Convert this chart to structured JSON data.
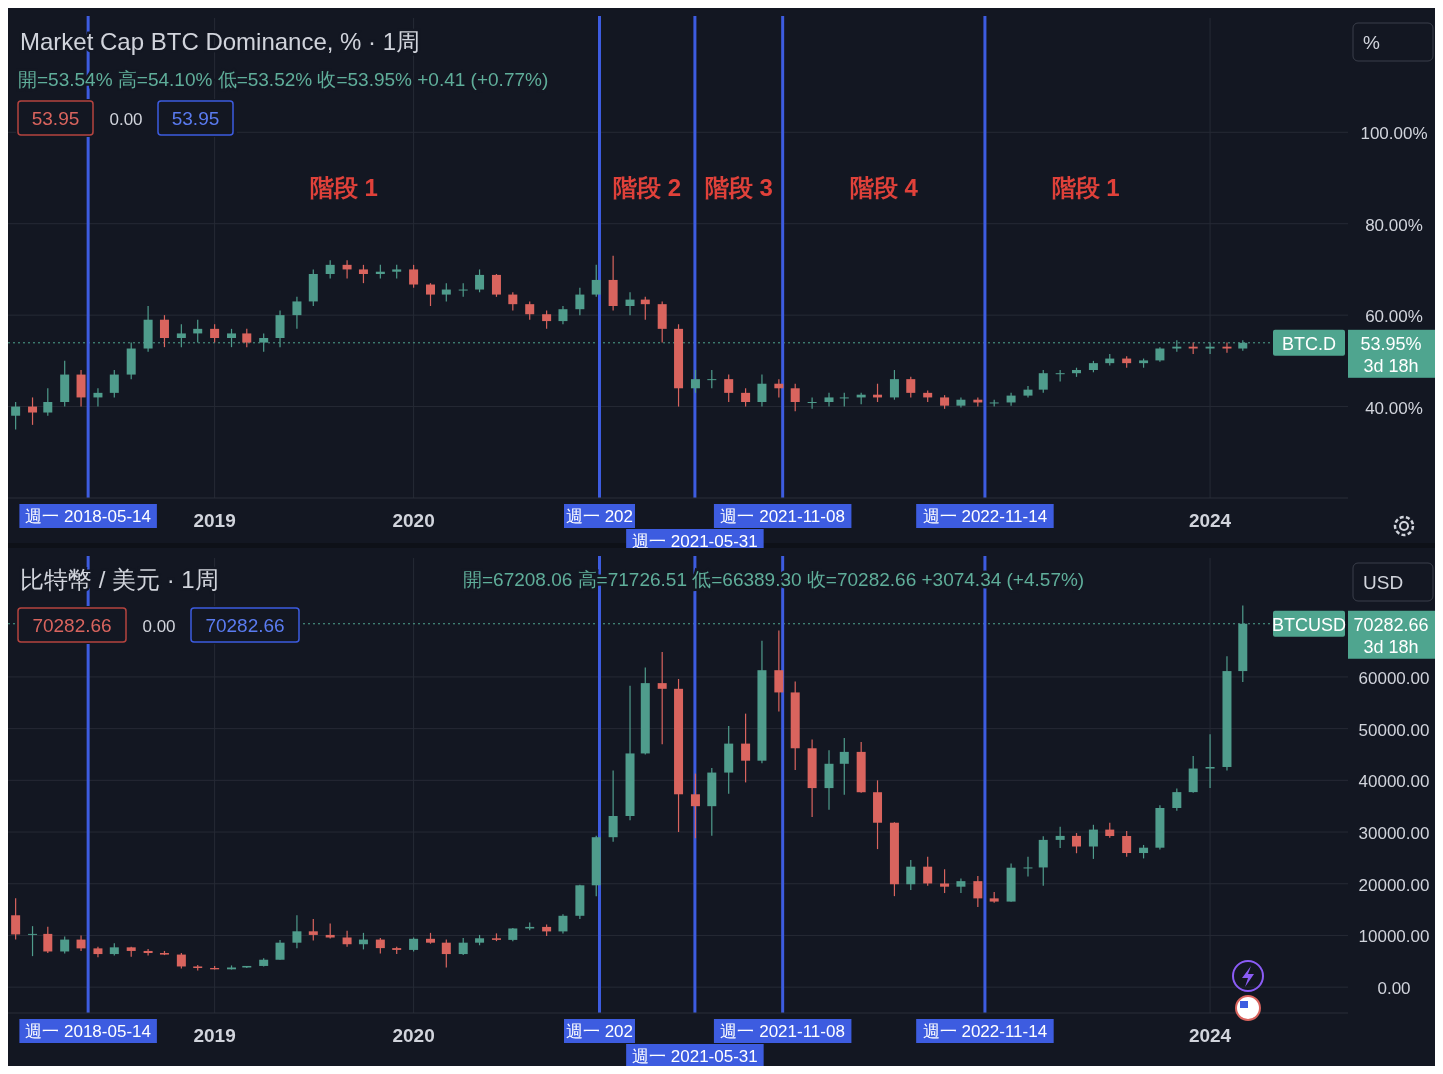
{
  "chart_data": [
    {
      "type": "candlestick",
      "title": "Market Cap BTC Dominance, % · 1周",
      "subtitle": "開=53.54% 高=54.10% 低=53.52% 收=53.95% +0.41 (+0.77%)",
      "annotations": [
        "53.95",
        "0.00",
        "53.95",
        "%",
        "53.95%",
        "3d 18h",
        "階段 1",
        "階段 2",
        "階段 3",
        "階段 4",
        "階段 1"
      ],
      "x": [
        "2018-01",
        "2018-02",
        "2018-03",
        "2018-04",
        "2018-05",
        "2018-06",
        "2018-07",
        "2018-08",
        "2018-09",
        "2018-10",
        "2018-11",
        "2018-12",
        "2019-01",
        "2019-02",
        "2019-03",
        "2019-04",
        "2019-05",
        "2019-06",
        "2019-07",
        "2019-08",
        "2019-09",
        "2019-10",
        "2019-11",
        "2019-12",
        "2020-01",
        "2020-02",
        "2020-03",
        "2020-04",
        "2020-05",
        "2020-06",
        "2020-07",
        "2020-08",
        "2020-09",
        "2020-10",
        "2020-11",
        "2020-12",
        "2021-01",
        "2021-02",
        "2021-03",
        "2021-04",
        "2021-05",
        "2021-06",
        "2021-07",
        "2021-08",
        "2021-09",
        "2021-10",
        "2021-11",
        "2021-12",
        "2022-01",
        "2022-02",
        "2022-03",
        "2022-04",
        "2022-05",
        "2022-06",
        "2022-07",
        "2022-08",
        "2022-09",
        "2022-10",
        "2022-11",
        "2022-12",
        "2023-01",
        "2023-02",
        "2023-03",
        "2023-04",
        "2023-05",
        "2023-06",
        "2023-07",
        "2023-08",
        "2023-09",
        "2023-10",
        "2023-11",
        "2023-12",
        "2024-01",
        "2024-02",
        "2024-03"
      ],
      "ohlc": [
        [
          38,
          41,
          35,
          40
        ],
        [
          40,
          42,
          36,
          38.7
        ],
        [
          38.7,
          44,
          38,
          41
        ],
        [
          41,
          50,
          40,
          47
        ],
        [
          47,
          48,
          40,
          42
        ],
        [
          42,
          44,
          40,
          43
        ],
        [
          43,
          48,
          42,
          47
        ],
        [
          47,
          54,
          46,
          52.7
        ],
        [
          52.7,
          62,
          52,
          59
        ],
        [
          59,
          60,
          53,
          55
        ],
        [
          55,
          58,
          53,
          56
        ],
        [
          56,
          59,
          54,
          57
        ],
        [
          57,
          58,
          54,
          55
        ],
        [
          55,
          57,
          53,
          56
        ],
        [
          56,
          57,
          53,
          54
        ],
        [
          54,
          56,
          52,
          55
        ],
        [
          55,
          61,
          53,
          60
        ],
        [
          60,
          64,
          57,
          63
        ],
        [
          63,
          70,
          62,
          69
        ],
        [
          69,
          72,
          68,
          71
        ],
        [
          71,
          72,
          68,
          70
        ],
        [
          70,
          71,
          67,
          69
        ],
        [
          69,
          71,
          68,
          69.5
        ],
        [
          69.5,
          71,
          68,
          70
        ],
        [
          70,
          71,
          66,
          66.7
        ],
        [
          66.7,
          67,
          62,
          64.5
        ],
        [
          64.5,
          67,
          63,
          65.6
        ],
        [
          65.6,
          67,
          64,
          65.6
        ],
        [
          65.6,
          70,
          65,
          68.8
        ],
        [
          68.8,
          69,
          64,
          64.5
        ],
        [
          64.5,
          65,
          61,
          62.4
        ],
        [
          62.4,
          63,
          59,
          60.2
        ],
        [
          60.2,
          61,
          57,
          58.7
        ],
        [
          58.7,
          62,
          58,
          61.3
        ],
        [
          61.3,
          66,
          60,
          64.5
        ],
        [
          64.5,
          71,
          64,
          67.7
        ],
        [
          67.7,
          73,
          61,
          62
        ],
        [
          62,
          65,
          60,
          63.4
        ],
        [
          63.4,
          64,
          59,
          62.4
        ],
        [
          62.4,
          63,
          54,
          57
        ],
        [
          57,
          58,
          40,
          44
        ],
        [
          44,
          48,
          43,
          46
        ],
        [
          46,
          48,
          44,
          46
        ],
        [
          46,
          47,
          41,
          43
        ],
        [
          43,
          44,
          40,
          41
        ],
        [
          41,
          47,
          40,
          45
        ],
        [
          45,
          46,
          42,
          44
        ],
        [
          44,
          45,
          39,
          41
        ],
        [
          41,
          42,
          39.5,
          41
        ],
        [
          41,
          43,
          40,
          42
        ],
        [
          42,
          43,
          40,
          42
        ],
        [
          42,
          43,
          40.5,
          42.6
        ],
        [
          42.6,
          45,
          41,
          42
        ],
        [
          42,
          48,
          41.5,
          46
        ],
        [
          46,
          46.5,
          42,
          43
        ],
        [
          43,
          43.5,
          41,
          42
        ],
        [
          42,
          42.5,
          39.5,
          40.2
        ],
        [
          40.2,
          42,
          39.8,
          41.5
        ],
        [
          41.5,
          42,
          40,
          40.9
        ],
        [
          40.9,
          41.5,
          40,
          40.9
        ],
        [
          40.9,
          43,
          40.2,
          42.4
        ],
        [
          42.4,
          44.5,
          42,
          43.7
        ],
        [
          43.7,
          48,
          43,
          47.3
        ],
        [
          47.3,
          48,
          45.5,
          47.3
        ],
        [
          47.3,
          48.5,
          46.5,
          48
        ],
        [
          48,
          50,
          47.5,
          49.5
        ],
        [
          49.5,
          51.5,
          49,
          50.5
        ],
        [
          50.5,
          51,
          48.5,
          49.5
        ],
        [
          49.5,
          50.5,
          48.5,
          50.1
        ],
        [
          50.1,
          53,
          49.8,
          52.7
        ],
        [
          52.7,
          54.5,
          52,
          53.1
        ],
        [
          53.1,
          54,
          51.5,
          52.7
        ],
        [
          52.7,
          54,
          51.5,
          53.1
        ],
        [
          53.1,
          54,
          51.8,
          52.7
        ],
        [
          52.7,
          54.5,
          52.2,
          53.95
        ]
      ],
      "xlim": [
        "2017-12-18",
        "2024-09-10"
      ],
      "xticks": [
        {
          "value": "2019",
          "label": "2019"
        },
        {
          "value": "2020",
          "label": "2020"
        },
        {
          "value": "2024",
          "label": "2024"
        }
      ],
      "ylim": [
        20,
        125
      ],
      "yticks": [
        {
          "value": 40,
          "label": "40.00%"
        },
        {
          "value": 60,
          "label": "60.00%"
        },
        {
          "value": 80,
          "label": "80.00%"
        },
        {
          "value": 100,
          "label": "100.00%"
        }
      ],
      "grid": true,
      "ref_lines": [
        {
          "axis": "x",
          "value": "2018-05-14",
          "label": "週一 2018-05-14",
          "color": "#3d5ce0"
        },
        {
          "axis": "x",
          "value": "2020-12-07",
          "label": "週一 202",
          "color": "#3d5ce0"
        },
        {
          "axis": "x",
          "value": "2021-05-31",
          "label": "週一 2021-05-31",
          "color": "#3d5ce0"
        },
        {
          "axis": "x",
          "value": "2021-11-08",
          "label": "週一 2021-11-08",
          "color": "#3d5ce0"
        },
        {
          "axis": "x",
          "value": "2022-11-14",
          "label": "週一 2022-11-14",
          "color": "#3d5ce0"
        },
        {
          "axis": "y",
          "value": 53.95,
          "label": "BTC.D",
          "color": "#4fa58f",
          "line_style": "dotted"
        }
      ]
    },
    {
      "type": "candlestick",
      "title": "比特幣 / 美元 · 1周",
      "subtitle": "開=67208.06 高=71726.51 低=66389.30 收=70282.66 +3074.34 (+4.57%)",
      "annotations": [
        "70282.66",
        "0.00",
        "70282.66",
        "USD",
        "70282.66",
        "3d 18h"
      ],
      "x": [
        "2018-01",
        "2018-02",
        "2018-03",
        "2018-04",
        "2018-05",
        "2018-06",
        "2018-07",
        "2018-08",
        "2018-09",
        "2018-10",
        "2018-11",
        "2018-12",
        "2019-01",
        "2019-02",
        "2019-03",
        "2019-04",
        "2019-05",
        "2019-06",
        "2019-07",
        "2019-08",
        "2019-09",
        "2019-10",
        "2019-11",
        "2019-12",
        "2020-01",
        "2020-02",
        "2020-03",
        "2020-04",
        "2020-05",
        "2020-06",
        "2020-07",
        "2020-08",
        "2020-09",
        "2020-10",
        "2020-11",
        "2020-12",
        "2021-01",
        "2021-02",
        "2021-03",
        "2021-04",
        "2021-05",
        "2021-06",
        "2021-07",
        "2021-08",
        "2021-09",
        "2021-10",
        "2021-11",
        "2021-12",
        "2022-01",
        "2022-02",
        "2022-03",
        "2022-04",
        "2022-05",
        "2022-06",
        "2022-07",
        "2022-08",
        "2022-09",
        "2022-10",
        "2022-11",
        "2022-12",
        "2023-01",
        "2023-02",
        "2023-03",
        "2023-04",
        "2023-05",
        "2023-06",
        "2023-07",
        "2023-08",
        "2023-09",
        "2023-10",
        "2023-11",
        "2023-12",
        "2024-01",
        "2024-02",
        "2024-03"
      ],
      "ohlc": [
        [
          13900,
          17200,
          9200,
          10200
        ],
        [
          10200,
          11800,
          6000,
          10300
        ],
        [
          10300,
          11700,
          6600,
          6900
        ],
        [
          6900,
          9800,
          6500,
          9200
        ],
        [
          9200,
          10000,
          7000,
          7500
        ],
        [
          7500,
          7800,
          5800,
          6400
        ],
        [
          6400,
          8500,
          6100,
          7700
        ],
        [
          7700,
          7800,
          5900,
          7000
        ],
        [
          7000,
          7400,
          6100,
          6600
        ],
        [
          6600,
          7000,
          6200,
          6300
        ],
        [
          6300,
          6600,
          3600,
          4000
        ],
        [
          4000,
          4300,
          3200,
          3700
        ],
        [
          3700,
          4100,
          3400,
          3450
        ],
        [
          3450,
          4200,
          3400,
          3800
        ],
        [
          3800,
          4100,
          3700,
          4100
        ],
        [
          4100,
          5600,
          4000,
          5300
        ],
        [
          5300,
          9100,
          5300,
          8600
        ],
        [
          8600,
          13900,
          7500,
          10800
        ],
        [
          10800,
          13200,
          9000,
          10100
        ],
        [
          10100,
          12300,
          9400,
          9600
        ],
        [
          9600,
          10900,
          7800,
          8300
        ],
        [
          8300,
          10500,
          7300,
          9200
        ],
        [
          9200,
          9500,
          6500,
          7550
        ],
        [
          7550,
          7800,
          6400,
          7200
        ],
        [
          7200,
          9600,
          6900,
          9350
        ],
        [
          9350,
          10500,
          8400,
          8600
        ],
        [
          8600,
          9200,
          3800,
          6400
        ],
        [
          6400,
          9500,
          6200,
          8600
        ],
        [
          8600,
          10100,
          8100,
          9450
        ],
        [
          9450,
          10400,
          8900,
          9140
        ],
        [
          9140,
          11450,
          8900,
          11350
        ],
        [
          11350,
          12500,
          11000,
          11650
        ],
        [
          11650,
          12100,
          9900,
          10780
        ],
        [
          10780,
          14100,
          10400,
          13800
        ],
        [
          13800,
          19800,
          13200,
          19700
        ],
        [
          19700,
          29300,
          17600,
          29000
        ],
        [
          29000,
          41900,
          28100,
          33100
        ],
        [
          33100,
          58300,
          32300,
          45200
        ],
        [
          45200,
          61800,
          45000,
          58800
        ],
        [
          58800,
          64800,
          47000,
          57700
        ],
        [
          57700,
          59600,
          30000,
          37300
        ],
        [
          37300,
          41300,
          28800,
          35000
        ],
        [
          35000,
          42400,
          29300,
          41500
        ],
        [
          41500,
          50500,
          37400,
          47100
        ],
        [
          47100,
          52900,
          39600,
          43800
        ],
        [
          43800,
          67000,
          43300,
          61300
        ],
        [
          61300,
          69000,
          53300,
          57000
        ],
        [
          57000,
          59100,
          42000,
          46200
        ],
        [
          46200,
          47900,
          32900,
          38500
        ],
        [
          38500,
          45800,
          34300,
          43200
        ],
        [
          43200,
          48200,
          37200,
          45500
        ],
        [
          45500,
          47400,
          37600,
          37700
        ],
        [
          37700,
          40000,
          26700,
          31800
        ],
        [
          31800,
          31900,
          17600,
          19900
        ],
        [
          19900,
          24600,
          18800,
          23300
        ],
        [
          23300,
          25200,
          19600,
          20050
        ],
        [
          20050,
          22800,
          18200,
          19430
        ],
        [
          19430,
          21000,
          18200,
          20500
        ],
        [
          20500,
          21500,
          15500,
          17170
        ],
        [
          17170,
          18400,
          16300,
          16550
        ],
        [
          16550,
          23900,
          16500,
          23100
        ],
        [
          23100,
          25200,
          21400,
          23150
        ],
        [
          23150,
          29200,
          19600,
          28480
        ],
        [
          28480,
          31000,
          26900,
          29250
        ],
        [
          29250,
          29800,
          25900,
          27200
        ],
        [
          27200,
          31400,
          24800,
          30470
        ],
        [
          30470,
          31800,
          28900,
          29230
        ],
        [
          29230,
          30200,
          25200,
          25940
        ],
        [
          25940,
          27500,
          24900,
          26970
        ],
        [
          26970,
          35200,
          26600,
          34650
        ],
        [
          34650,
          38400,
          34100,
          37720
        ],
        [
          37720,
          44700,
          37600,
          42280
        ],
        [
          42280,
          48900,
          38500,
          42580
        ],
        [
          42580,
          64000,
          41900,
          61130
        ],
        [
          61130,
          73800,
          59000,
          70282.66
        ]
      ],
      "xlim": [
        "2017-12-18",
        "2024-09-10"
      ],
      "xticks": [
        {
          "value": "2019",
          "label": "2019"
        },
        {
          "value": "2020",
          "label": "2020"
        },
        {
          "value": "2024",
          "label": "2024"
        }
      ],
      "ylim": [
        -5000,
        83000
      ],
      "yticks": [
        {
          "value": 0,
          "label": "0.00"
        },
        {
          "value": 10000,
          "label": "10000.00"
        },
        {
          "value": 20000,
          "label": "20000.00"
        },
        {
          "value": 30000,
          "label": "30000.00"
        },
        {
          "value": 40000,
          "label": "40000.00"
        },
        {
          "value": 50000,
          "label": "50000.00"
        },
        {
          "value": 60000,
          "label": "60000.00"
        }
      ],
      "grid": true,
      "ref_lines": [
        {
          "axis": "x",
          "value": "2018-05-14",
          "label": "週一 2018-05-14",
          "color": "#3d5ce0"
        },
        {
          "axis": "x",
          "value": "2020-12-07",
          "label": "週一 202",
          "color": "#3d5ce0"
        },
        {
          "axis": "x",
          "value": "2021-05-31",
          "label": "週一 2021-05-31",
          "color": "#3d5ce0"
        },
        {
          "axis": "x",
          "value": "2021-11-08",
          "label": "週一 2021-11-08",
          "color": "#3d5ce0"
        },
        {
          "axis": "x",
          "value": "2022-11-14",
          "label": "週一 2022-11-14",
          "color": "#3d5ce0"
        },
        {
          "axis": "y",
          "value": 70282.66,
          "label": "BTCUSD",
          "color": "#4fa58f",
          "line_style": "dotted"
        }
      ]
    }
  ]
}
